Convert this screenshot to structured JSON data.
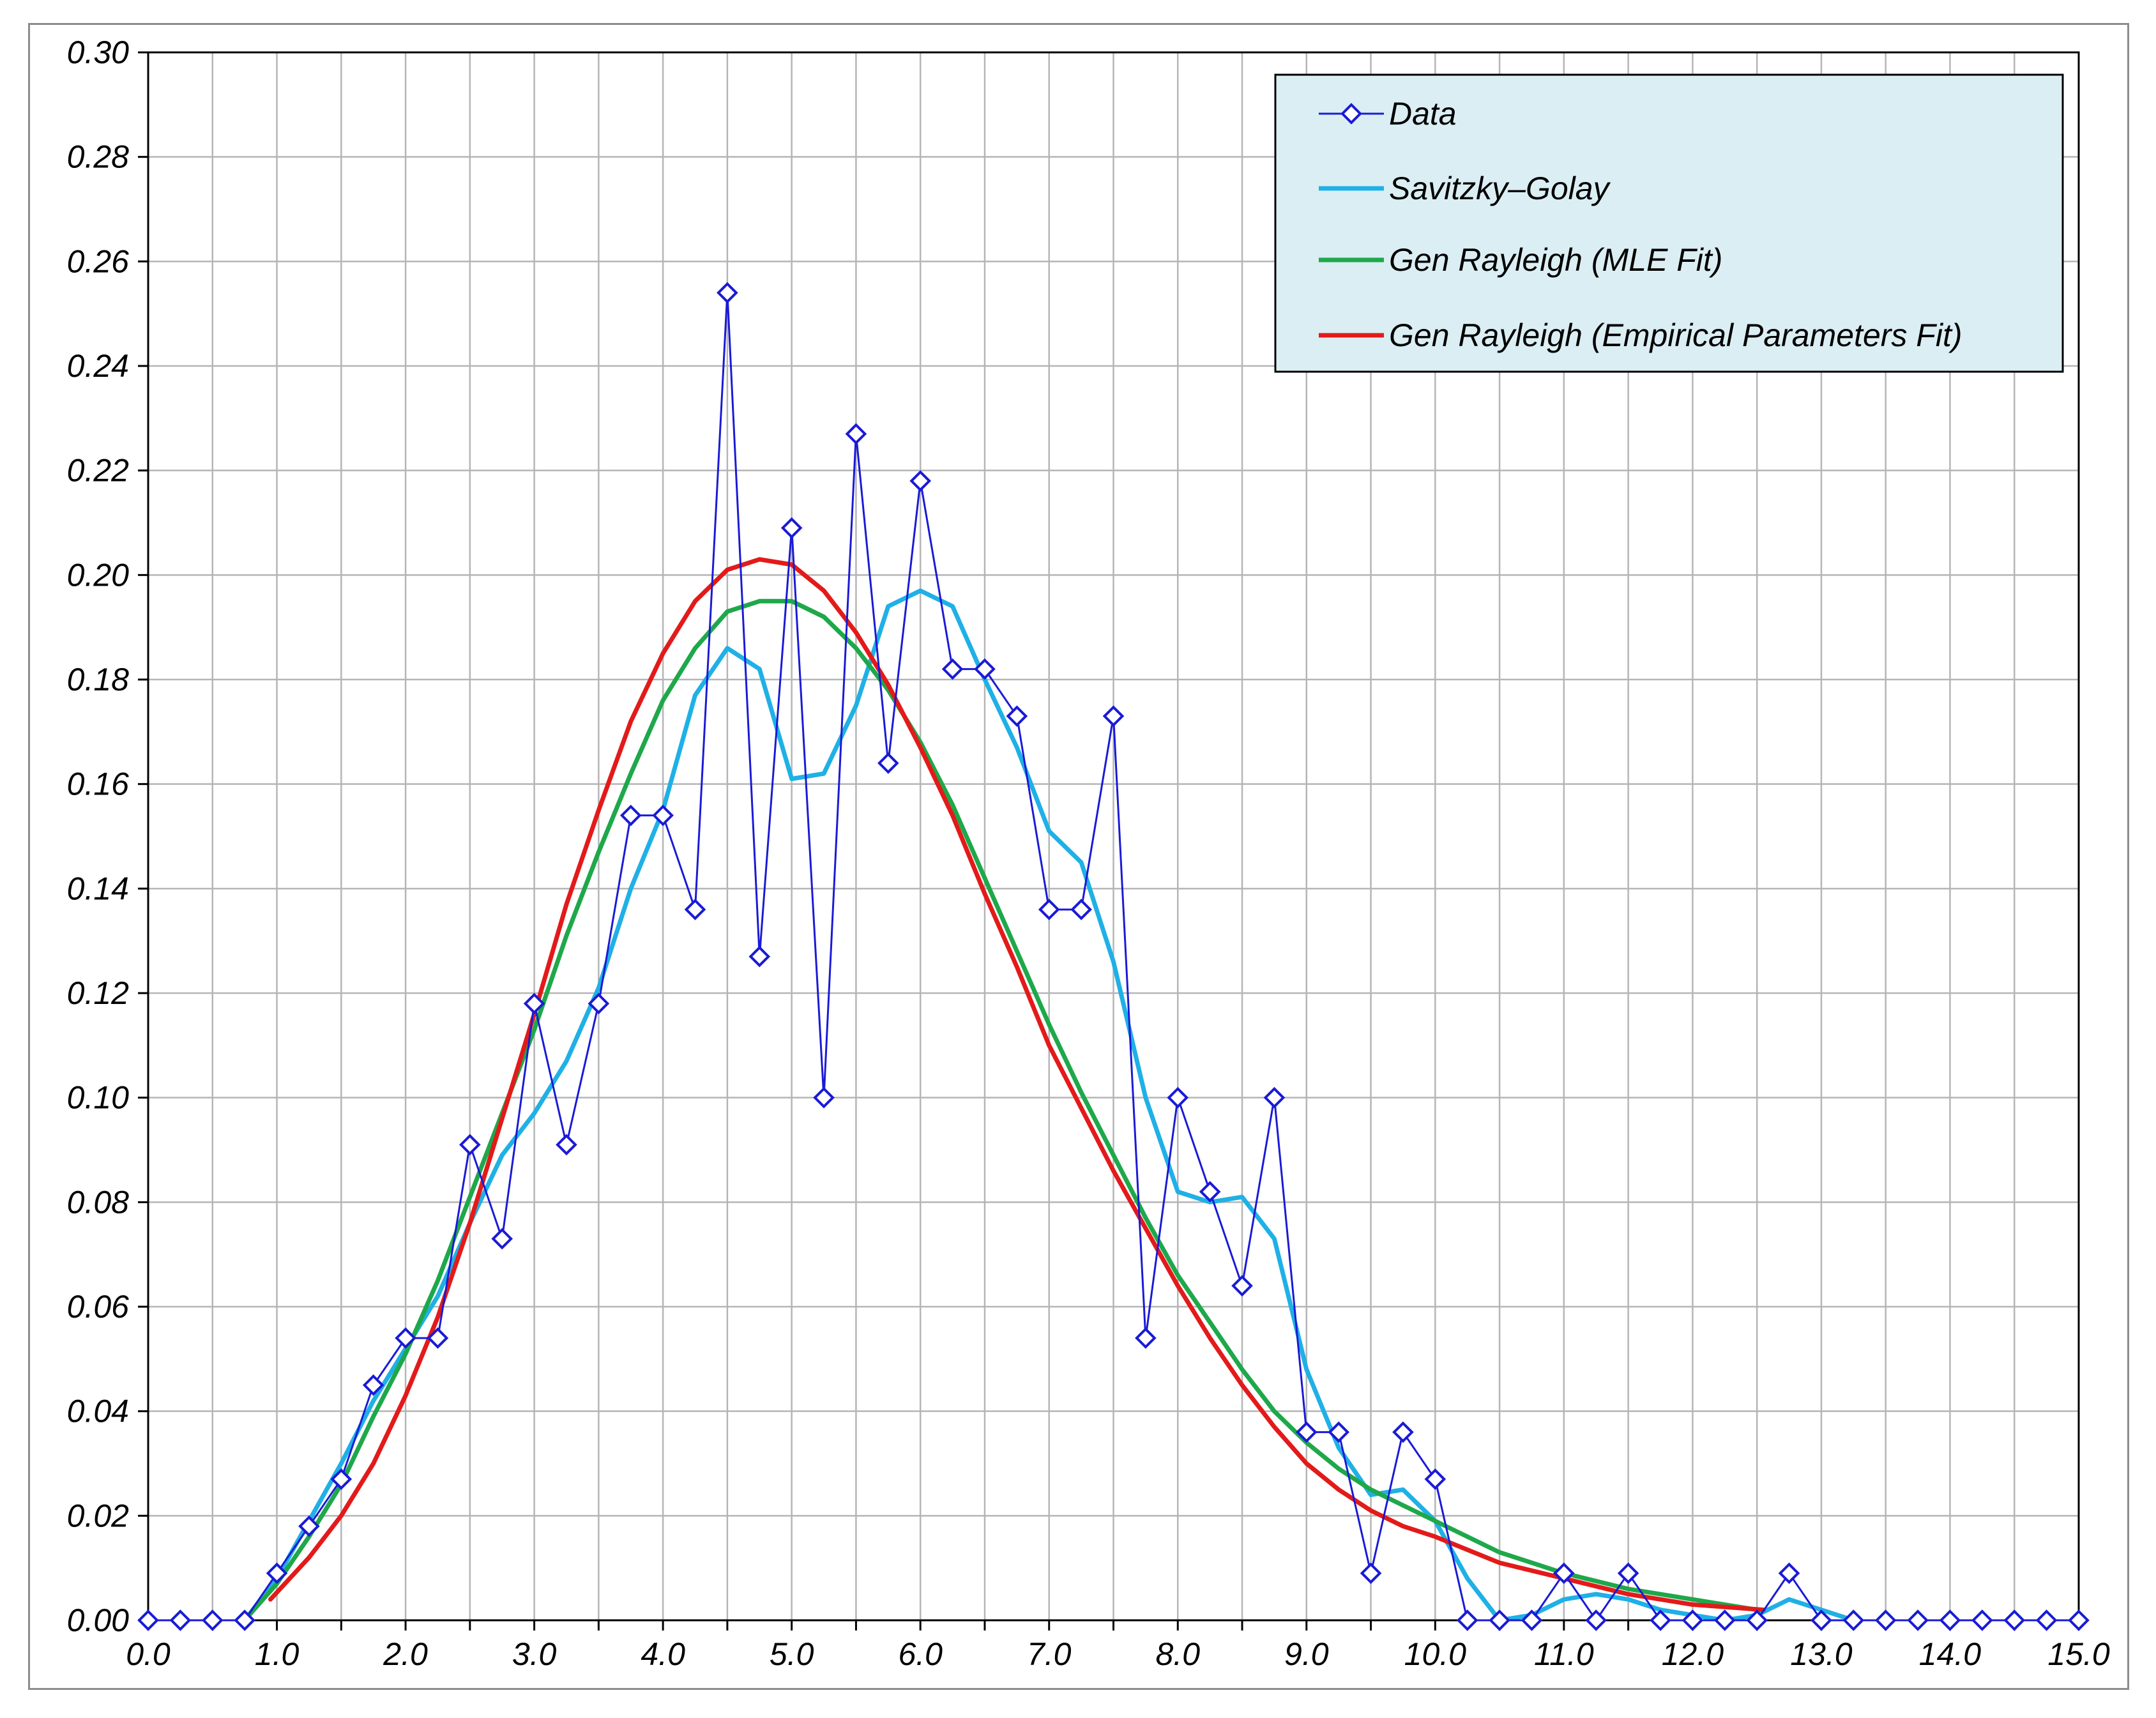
{
  "chart_data": {
    "type": "line",
    "title": "",
    "xlabel": "",
    "ylabel": "",
    "xlim": [
      0,
      15
    ],
    "ylim": [
      0,
      0.3
    ],
    "grid": true,
    "legend_position": "top-right",
    "x_ticks": [
      "0.0",
      "1.0",
      "2.0",
      "3.0",
      "4.0",
      "5.0",
      "6.0",
      "7.0",
      "8.0",
      "9.0",
      "10.0",
      "11.0",
      "12.0",
      "13.0",
      "14.0",
      "15.0"
    ],
    "y_ticks": [
      "0.00",
      "0.02",
      "0.04",
      "0.06",
      "0.08",
      "0.10",
      "0.12",
      "0.14",
      "0.16",
      "0.18",
      "0.20",
      "0.22",
      "0.24",
      "0.26",
      "0.28",
      "0.30"
    ],
    "series": [
      {
        "name": "Data",
        "color": "#1a1ad6",
        "marker": "diamond",
        "x": [
          0,
          0.25,
          0.5,
          0.75,
          1,
          1.25,
          1.5,
          1.75,
          2,
          2.25,
          2.5,
          2.75,
          3,
          3.25,
          3.5,
          3.75,
          4,
          4.25,
          4.5,
          4.75,
          5,
          5.25,
          5.5,
          5.75,
          6,
          6.25,
          6.5,
          6.75,
          7,
          7.25,
          7.5,
          7.75,
          8,
          8.25,
          8.5,
          8.75,
          9,
          9.25,
          9.5,
          9.75,
          10,
          10.25,
          10.5,
          10.75,
          11,
          11.25,
          11.5,
          11.75,
          12,
          12.25,
          12.5,
          12.75,
          13,
          13.25,
          13.5,
          13.75,
          14,
          14.25,
          14.5,
          14.75,
          15
        ],
        "y": [
          0,
          0,
          0,
          0,
          0.009,
          0.018,
          0.027,
          0.045,
          0.054,
          0.054,
          0.091,
          0.073,
          0.118,
          0.091,
          0.118,
          0.154,
          0.154,
          0.136,
          0.254,
          0.127,
          0.209,
          0.1,
          0.227,
          0.164,
          0.218,
          0.182,
          0.182,
          0.173,
          0.136,
          0.136,
          0.173,
          0.054,
          0.1,
          0.082,
          0.064,
          0.1,
          0.036,
          0.036,
          0.009,
          0.036,
          0.027,
          0,
          0,
          0,
          0.009,
          0,
          0.009,
          0,
          0,
          0,
          0,
          0.009,
          0,
          0,
          0,
          0,
          0,
          0,
          0,
          0,
          0
        ]
      },
      {
        "name": "Savitzky–Golay",
        "color": "#1fb0e6",
        "x": [
          0.75,
          1,
          1.25,
          1.5,
          1.75,
          2,
          2.25,
          2.5,
          2.75,
          3,
          3.25,
          3.5,
          3.75,
          4,
          4.25,
          4.5,
          4.75,
          5,
          5.25,
          5.5,
          5.75,
          6,
          6.25,
          6.5,
          6.75,
          7,
          7.25,
          7.5,
          7.75,
          8,
          8.25,
          8.5,
          8.75,
          9,
          9.25,
          9.5,
          9.75,
          10,
          10.25,
          10.5,
          10.75,
          11,
          11.25,
          11.5,
          11.75,
          12,
          12.25,
          12.5,
          12.75,
          13,
          13.25
        ],
        "y": [
          0,
          0.008,
          0.019,
          0.03,
          0.042,
          0.052,
          0.062,
          0.076,
          0.089,
          0.097,
          0.107,
          0.121,
          0.14,
          0.155,
          0.177,
          0.186,
          0.182,
          0.161,
          0.162,
          0.175,
          0.194,
          0.197,
          0.194,
          0.18,
          0.167,
          0.151,
          0.145,
          0.126,
          0.1,
          0.082,
          0.08,
          0.081,
          0.073,
          0.048,
          0.033,
          0.024,
          0.025,
          0.019,
          0.008,
          0,
          0.001,
          0.004,
          0.005,
          0.004,
          0.002,
          0.001,
          0,
          0.001,
          0.004,
          0.002,
          0
        ]
      },
      {
        "name": "Gen Rayleigh (MLE Fit)",
        "color": "#1ea84a",
        "x": [
          0.75,
          1,
          1.25,
          1.5,
          1.75,
          2,
          2.25,
          2.5,
          2.75,
          3,
          3.25,
          3.5,
          3.75,
          4,
          4.25,
          4.5,
          4.75,
          5,
          5.25,
          5.5,
          5.75,
          6,
          6.25,
          6.5,
          6.75,
          7,
          7.25,
          7.5,
          7.75,
          8,
          8.25,
          8.5,
          8.75,
          9,
          9.25,
          9.5,
          9.75,
          10,
          10.5,
          11,
          11.5,
          12,
          12.5
        ],
        "y": [
          0,
          0.007,
          0.016,
          0.026,
          0.039,
          0.051,
          0.065,
          0.081,
          0.097,
          0.113,
          0.131,
          0.147,
          0.162,
          0.176,
          0.186,
          0.193,
          0.195,
          0.195,
          0.192,
          0.186,
          0.178,
          0.168,
          0.156,
          0.142,
          0.128,
          0.114,
          0.101,
          0.089,
          0.077,
          0.066,
          0.057,
          0.048,
          0.04,
          0.034,
          0.029,
          0.025,
          0.022,
          0.019,
          0.013,
          0.009,
          0.006,
          0.004,
          0.002
        ]
      },
      {
        "name": "Gen Rayleigh (Empirical Parameters Fit)",
        "color": "#e31a1a",
        "x": [
          0.95,
          1.25,
          1.5,
          1.75,
          2,
          2.25,
          2.5,
          2.75,
          3,
          3.25,
          3.5,
          3.75,
          4,
          4.25,
          4.5,
          4.75,
          5,
          5.25,
          5.5,
          5.75,
          6,
          6.25,
          6.5,
          6.75,
          7,
          7.25,
          7.5,
          7.75,
          8,
          8.25,
          8.5,
          8.75,
          9,
          9.25,
          9.5,
          9.75,
          10,
          10.5,
          11,
          11.5,
          12,
          12.55
        ],
        "y": [
          0.004,
          0.012,
          0.02,
          0.03,
          0.043,
          0.058,
          0.076,
          0.096,
          0.116,
          0.137,
          0.155,
          0.172,
          0.185,
          0.195,
          0.201,
          0.203,
          0.202,
          0.197,
          0.189,
          0.179,
          0.167,
          0.154,
          0.139,
          0.125,
          0.11,
          0.098,
          0.086,
          0.075,
          0.064,
          0.054,
          0.045,
          0.037,
          0.03,
          0.025,
          0.021,
          0.018,
          0.016,
          0.011,
          0.008,
          0.005,
          0.003,
          0.002
        ]
      }
    ]
  }
}
